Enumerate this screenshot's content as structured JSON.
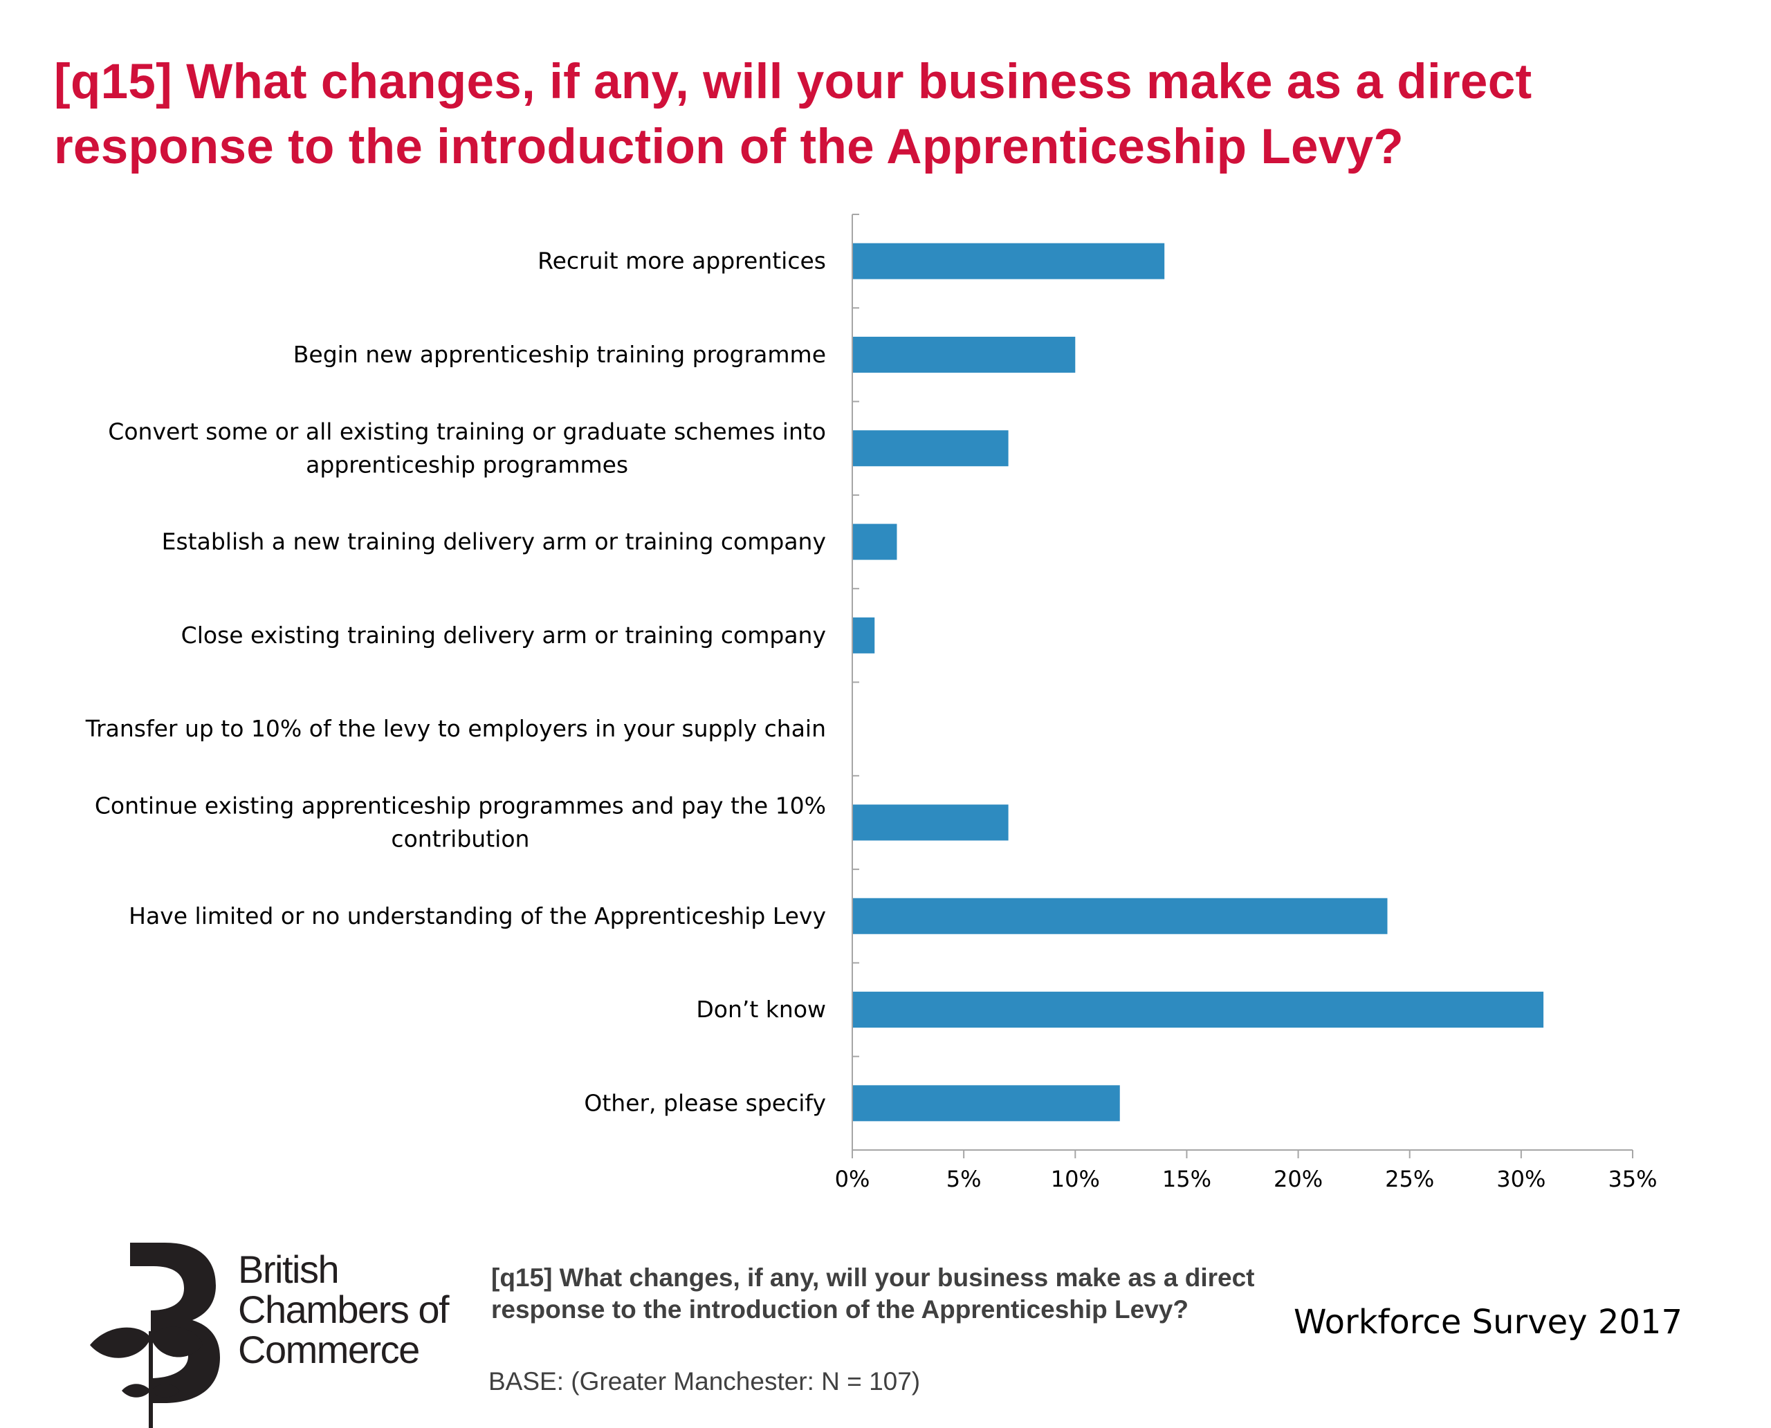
{
  "title": "[q15] What changes, if any, will your business make as a direct response to the introduction of the Apprenticeship Levy?",
  "chart_data": {
    "type": "bar",
    "orientation": "horizontal",
    "categories": [
      [
        "Recruit more apprentices"
      ],
      [
        "Begin new apprenticeship training programme"
      ],
      [
        "Convert some or all existing training or graduate schemes into",
        "apprenticeship programmes"
      ],
      [
        "Establish a new training delivery arm or training company"
      ],
      [
        "Close existing training delivery arm or training company"
      ],
      [
        "Transfer up to 10% of the levy to employers in your supply chain"
      ],
      [
        "Continue existing apprenticeship programmes and pay the 10%",
        "contribution"
      ],
      [
        "Have limited or no understanding of the Apprenticeship Levy"
      ],
      [
        "Don’t know"
      ],
      [
        "Other, please specify"
      ]
    ],
    "values": [
      14,
      10,
      7,
      2,
      1,
      0,
      7,
      24,
      31,
      12
    ],
    "xlim": [
      0,
      35
    ],
    "xticks": [
      0,
      5,
      10,
      15,
      20,
      25,
      30,
      35
    ],
    "xtick_labels": [
      "0%",
      "5%",
      "10%",
      "15%",
      "20%",
      "25%",
      "30%",
      "35%"
    ],
    "xlabel": "",
    "ylabel": "",
    "bar_color": "#2e8bc0",
    "grid": false,
    "legend": false
  },
  "footer": {
    "question": "[q15] What changes, if any, will your business make as a direct response to the introduction of the Apprenticeship Levy?",
    "base": "BASE: (Greater Manchester: N = 107)",
    "survey": "Workforce Survey 2017"
  },
  "logo": {
    "lines": [
      "British",
      "Chambers of",
      "Commerce"
    ]
  },
  "colors": {
    "title": "#d0103a",
    "bar": "#2e8bc0",
    "axis": "#a6a6a6"
  }
}
